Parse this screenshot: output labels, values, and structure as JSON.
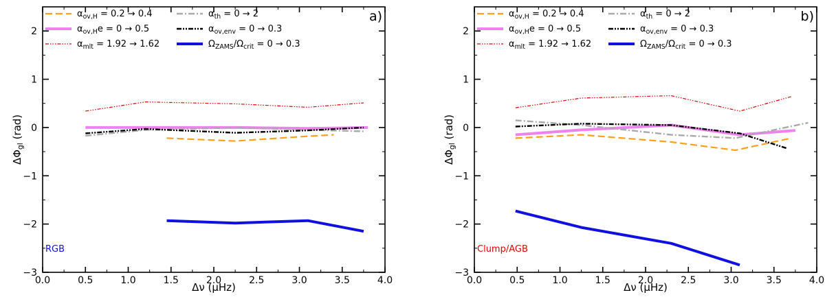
{
  "chart_data": [
    {
      "type": "line",
      "panel_label": "a)",
      "annotation": "RGB",
      "annotation_color": "#1010e0",
      "xlabel": "Δν (μHz)",
      "ylabel": "ΔΦgl (rad)",
      "xlim": [
        0.0,
        4.0
      ],
      "ylim": [
        -3.0,
        2.5
      ],
      "xticks": [
        0.0,
        0.5,
        1.0,
        1.5,
        2.0,
        2.5,
        3.0,
        3.5,
        4.0
      ],
      "xtick_labels": [
        "0.0",
        "0.5",
        "1.0",
        "1.5",
        "2.0",
        "2.5",
        "3.0",
        "3.5",
        "4.0"
      ],
      "yticks": [
        -3,
        -2,
        -1,
        0,
        1,
        2
      ],
      "ytick_labels": [
        "−3",
        "−2",
        "−1",
        "0",
        "1",
        "2"
      ],
      "series": [
        {
          "key": "ov_h",
          "name": "αov,H = 0.2 → 0.4",
          "color": "#ff9f1a",
          "x": [
            1.45,
            2.25,
            3.1,
            3.4
          ],
          "y": [
            -0.22,
            -0.28,
            -0.18,
            -0.15
          ]
        },
        {
          "key": "ov_he",
          "name": "αov,He = 0 → 0.5",
          "color": "#ee82ee",
          "x": [
            0.5,
            1.2,
            2.3,
            3.1,
            3.8
          ],
          "y": [
            0.0,
            0.0,
            0.0,
            -0.02,
            0.0
          ]
        },
        {
          "key": "mlt",
          "name": "αmlt = 1.92 → 1.62",
          "color": "#e00000",
          "x": [
            0.5,
            1.2,
            2.25,
            3.1,
            3.75
          ],
          "y": [
            0.34,
            0.53,
            0.49,
            0.42,
            0.51
          ]
        },
        {
          "key": "th",
          "name": "αth = 0 → 2",
          "color": "#aaaaaa",
          "x": [
            0.5,
            1.2,
            2.3,
            3.1,
            3.75
          ],
          "y": [
            -0.17,
            -0.05,
            0.0,
            -0.05,
            -0.08
          ]
        },
        {
          "key": "ov_env",
          "name": "αov,env = 0 → 0.3",
          "color": "#000000",
          "x": [
            0.5,
            1.2,
            2.25,
            3.1,
            3.75
          ],
          "y": [
            -0.12,
            -0.03,
            -0.11,
            -0.06,
            0.0
          ]
        },
        {
          "key": "rot",
          "name": "ΩZAMS/Ωcrit = 0 → 0.3",
          "color": "#1010e0",
          "x": [
            1.45,
            2.25,
            3.1,
            3.75
          ],
          "y": [
            -1.93,
            -1.98,
            -1.93,
            -2.15
          ]
        }
      ]
    },
    {
      "type": "line",
      "panel_label": "b)",
      "annotation": "Clump/AGB",
      "annotation_color": "#e00000",
      "xlabel": "Δν (μHz)",
      "ylabel": "ΔΦgl (rad)",
      "xlim": [
        0.0,
        4.0
      ],
      "ylim": [
        -3.0,
        2.5
      ],
      "xticks": [
        0.0,
        0.5,
        1.0,
        1.5,
        2.0,
        2.5,
        3.0,
        3.5,
        4.0
      ],
      "xtick_labels": [
        "0.0",
        "0.5",
        "1.0",
        "1.5",
        "2.0",
        "2.5",
        "3.0",
        "3.5",
        "4.0"
      ],
      "yticks": [
        -3,
        -2,
        -1,
        0,
        1,
        2
      ],
      "ytick_labels": [
        "−3",
        "−2",
        "−1",
        "0",
        "1",
        "2"
      ],
      "series": [
        {
          "key": "ov_h",
          "name": "αov,H = 0.2 → 0.4",
          "color": "#ff9f1a",
          "x": [
            0.48,
            1.25,
            2.3,
            3.05,
            3.7
          ],
          "y": [
            -0.22,
            -0.15,
            -0.3,
            -0.47,
            -0.22
          ]
        },
        {
          "key": "ov_he",
          "name": "αov,He = 0 → 0.5",
          "color": "#ee82ee",
          "x": [
            0.48,
            1.25,
            2.3,
            3.1,
            3.75
          ],
          "y": [
            -0.15,
            -0.05,
            0.05,
            -0.15,
            -0.06
          ]
        },
        {
          "key": "mlt",
          "name": "αmlt = 1.92 → 1.62",
          "color": "#e00000",
          "x": [
            0.48,
            1.25,
            2.3,
            3.1,
            3.7
          ],
          "y": [
            0.41,
            0.61,
            0.66,
            0.34,
            0.64
          ]
        },
        {
          "key": "th",
          "name": "αth = 0 → 2",
          "color": "#aaaaaa",
          "x": [
            0.48,
            1.25,
            2.3,
            3.05,
            3.9
          ],
          "y": [
            0.15,
            0.05,
            -0.15,
            -0.22,
            0.1
          ]
        },
        {
          "key": "ov_env",
          "name": "αov,env = 0 → 0.3",
          "color": "#000000",
          "x": [
            0.48,
            1.25,
            2.3,
            3.1,
            3.65
          ],
          "y": [
            0.02,
            0.08,
            0.05,
            -0.12,
            -0.43
          ]
        },
        {
          "key": "rot",
          "name": "ΩZAMS/Ωcrit = 0 → 0.3",
          "color": "#1010e0",
          "x": [
            0.48,
            1.25,
            2.3,
            3.1
          ],
          "y": [
            -1.73,
            -2.07,
            -2.4,
            -2.85
          ]
        }
      ]
    }
  ]
}
